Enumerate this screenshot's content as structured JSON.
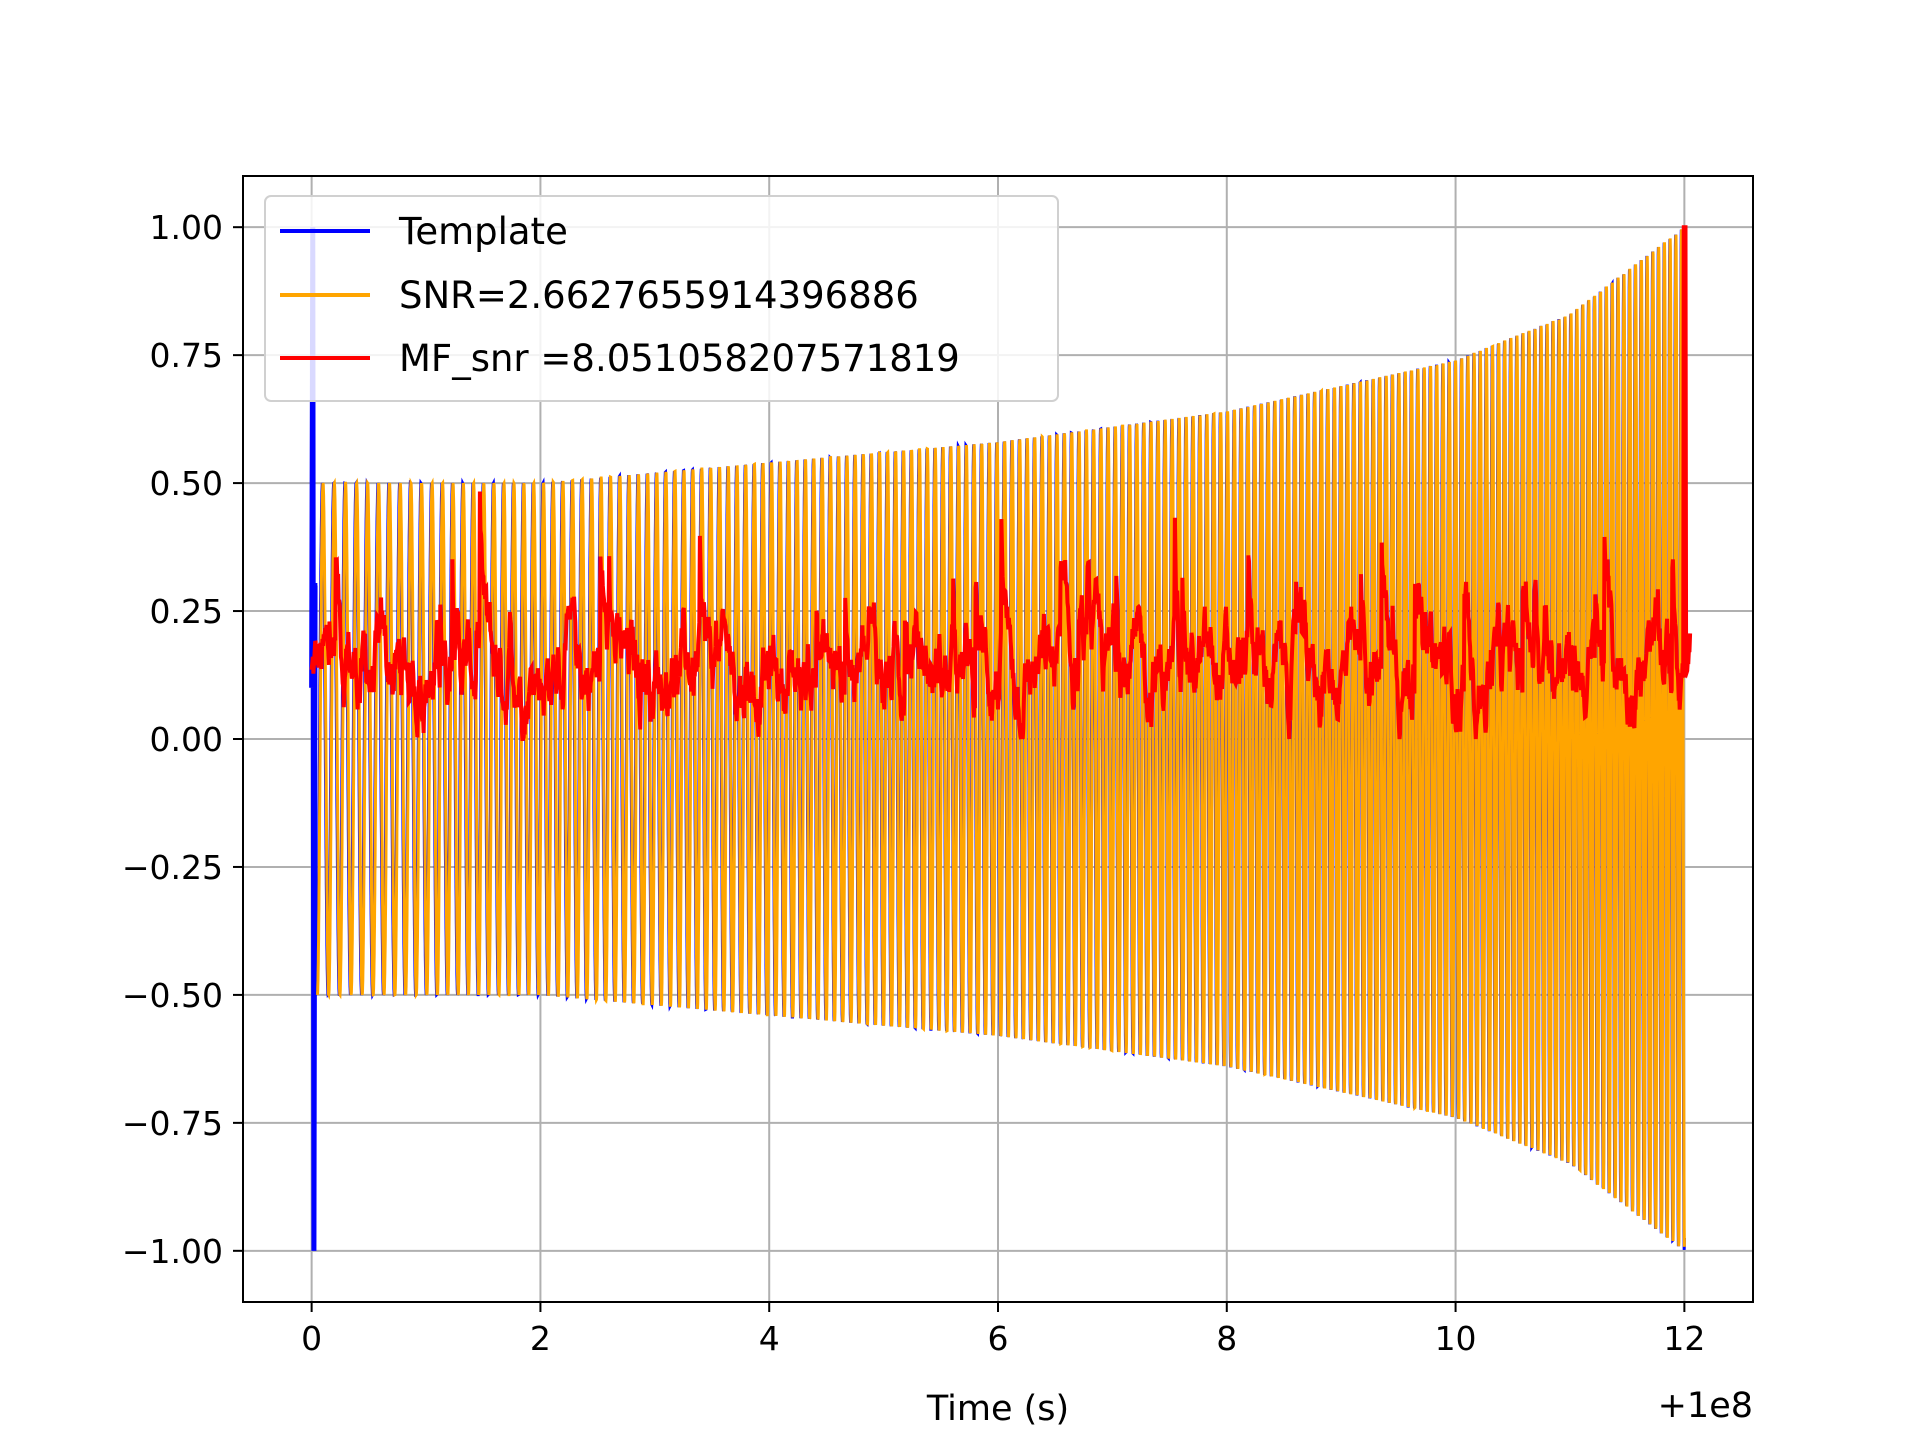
{
  "chart_data": {
    "type": "line",
    "title": "",
    "xlabel": "Time (s)",
    "ylabel": "",
    "x_offset_label": "+1e8",
    "xlim": [
      -0.6,
      12.6
    ],
    "ylim": [
      -1.1,
      1.1
    ],
    "grid": true,
    "legend_position": "upper-left",
    "x_ticks": [
      0,
      2,
      4,
      6,
      8,
      10,
      12
    ],
    "x_tick_labels": [
      "0",
      "2",
      "4",
      "6",
      "8",
      "10",
      "12"
    ],
    "y_ticks": [
      1.0,
      0.75,
      0.5,
      0.25,
      0.0,
      -0.25,
      -0.5,
      -0.75,
      -1.0
    ],
    "y_tick_labels": [
      "1.00",
      "0.75",
      "0.50",
      "0.25",
      "0.00",
      "−0.25",
      "−0.50",
      "−0.75",
      "−1.00"
    ],
    "series": [
      {
        "name": "Template",
        "color": "#0000ff",
        "description": "chirp signal, amplitude ~0.5 at t=0 growing to ~1.0 at t=12, spike to ±1.0 at t=0",
        "envelope": [
          [
            0.05,
            0.5
          ],
          [
            2,
            0.5
          ],
          [
            4,
            0.54
          ],
          [
            6,
            0.58
          ],
          [
            8,
            0.64
          ],
          [
            10,
            0.74
          ],
          [
            11,
            0.83
          ],
          [
            12,
            1.0
          ]
        ]
      },
      {
        "name": "SNR=2.6627655914396886",
        "color": "#ffa500",
        "description": "chirp signal nearly coincident with template",
        "envelope": [
          [
            0.05,
            0.5
          ],
          [
            2,
            0.5
          ],
          [
            4,
            0.54
          ],
          [
            6,
            0.58
          ],
          [
            8,
            0.64
          ],
          [
            10,
            0.74
          ],
          [
            11,
            0.83
          ],
          [
            12,
            1.0
          ]
        ]
      },
      {
        "name": "MF_snr =8.051058207571819",
        "color": "#ff0000",
        "description": "noisy matched-filter output fluctuating between ~0.0 and ~0.5, peak 1.0 at t=12",
        "range": [
          0.0,
          0.53
        ],
        "peak": {
          "x": 12.0,
          "y": 1.0
        }
      }
    ]
  }
}
